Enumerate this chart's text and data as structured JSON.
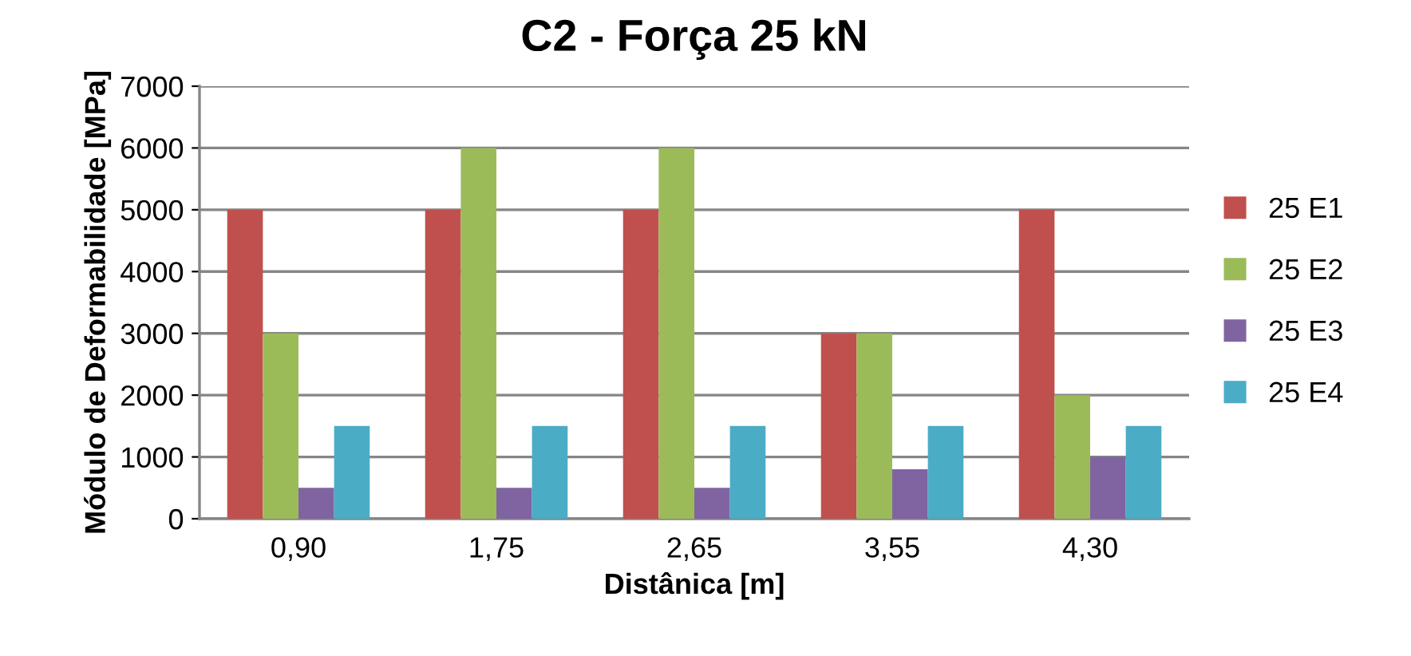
{
  "chart_data": {
    "type": "bar",
    "title": "C2 - Força 25 kN",
    "xlabel": "Distânica [m]",
    "ylabel": "Módulo de Deformabilidade [MPa]",
    "categories": [
      "0,90",
      "1,75",
      "2,65",
      "3,55",
      "4,30"
    ],
    "series": [
      {
        "name": "25 E1",
        "color": "#c0504d",
        "values": [
          5000,
          5000,
          5000,
          3000,
          5000
        ]
      },
      {
        "name": "25 E2",
        "color": "#9bbb59",
        "values": [
          3000,
          6000,
          6000,
          3000,
          2000
        ]
      },
      {
        "name": "25 E3",
        "color": "#8064a2",
        "values": [
          500,
          500,
          500,
          800,
          1000
        ]
      },
      {
        "name": "25 E4",
        "color": "#4bacc6",
        "values": [
          1500,
          1500,
          1500,
          1500,
          1500
        ]
      }
    ],
    "ylim": [
      0,
      7000
    ],
    "yticks": [
      0,
      1000,
      2000,
      3000,
      4000,
      5000,
      6000,
      7000
    ],
    "grid": "y",
    "legend": "right"
  }
}
